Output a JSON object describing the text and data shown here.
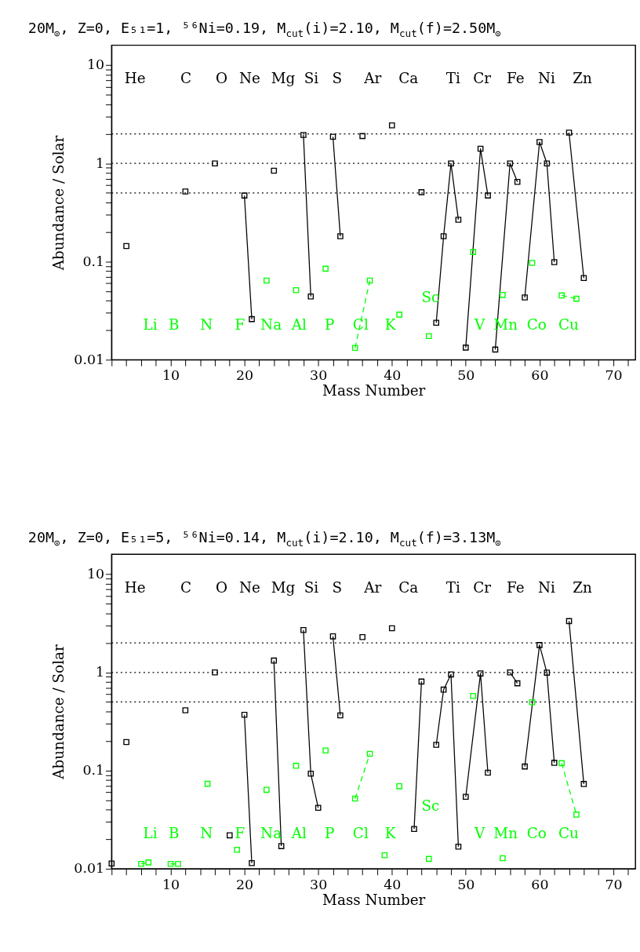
{
  "chart_data": [
    {
      "type": "line",
      "title": "20M$_{⊙}$, Z=0, E₅₁=1, ⁵⁶Ni=0.19, M$_{cut}$(i)=2.10, M$_{cut}$(f)=2.50M$_{⊙}$",
      "xlabel": "Mass Number",
      "ylabel": "Abundance / Solar",
      "log": "y",
      "grid": false,
      "marker": "square",
      "xlim": [
        2,
        73
      ],
      "xticks": [
        {
          "value": 2,
          "label": null
        },
        {
          "value": 4,
          "label": null
        },
        {
          "value": 6,
          "label": null
        },
        {
          "value": 8,
          "label": null
        },
        10,
        {
          "value": 12,
          "label": null
        },
        {
          "value": 14,
          "label": null
        },
        {
          "value": 16,
          "label": null
        },
        {
          "value": 18,
          "label": null
        },
        20,
        {
          "value": 22,
          "label": null
        },
        {
          "value": 24,
          "label": null
        },
        {
          "value": 26,
          "label": null
        },
        {
          "value": 28,
          "label": null
        },
        30,
        {
          "value": 32,
          "label": null
        },
        {
          "value": 34,
          "label": null
        },
        {
          "value": 36,
          "label": null
        },
        {
          "value": 38,
          "label": null
        },
        40,
        {
          "value": 42,
          "label": null
        },
        {
          "value": 44,
          "label": null
        },
        {
          "value": 46,
          "label": null
        },
        {
          "value": 48,
          "label": null
        },
        50,
        {
          "value": 52,
          "label": null
        },
        {
          "value": 54,
          "label": null
        },
        {
          "value": 56,
          "label": null
        },
        {
          "value": 58,
          "label": null
        },
        60,
        {
          "value": 62,
          "label": null
        },
        {
          "value": 64,
          "label": null
        },
        {
          "value": 66,
          "label": null
        },
        {
          "value": 68,
          "label": null
        },
        70,
        {
          "value": 72,
          "label": null
        }
      ],
      "ylim": [
        0.01,
        16
      ],
      "yticks": [
        0.01,
        {
          "value": 0.02,
          "label": null
        },
        {
          "value": 0.03,
          "label": null
        },
        {
          "value": 0.04,
          "label": null
        },
        {
          "value": 0.05,
          "label": null
        },
        {
          "value": 0.06,
          "label": null
        },
        {
          "value": 0.07,
          "label": null
        },
        {
          "value": 0.08,
          "label": null
        },
        {
          "value": 0.09,
          "label": null
        },
        0.1,
        {
          "value": 0.2,
          "label": null
        },
        {
          "value": 0.3,
          "label": null
        },
        {
          "value": 0.4,
          "label": null
        },
        {
          "value": 0.5,
          "label": null
        },
        {
          "value": 0.6,
          "label": null
        },
        {
          "value": 0.7,
          "label": null
        },
        {
          "value": 0.8,
          "label": null
        },
        {
          "value": 0.9,
          "label": null
        },
        1,
        {
          "value": 2,
          "label": null
        },
        {
          "value": 3,
          "label": null
        },
        {
          "value": 4,
          "label": null
        },
        {
          "value": 5,
          "label": null
        },
        {
          "value": 6,
          "label": null
        },
        {
          "value": 7,
          "label": null
        },
        {
          "value": 8,
          "label": null
        },
        {
          "value": 9,
          "label": null
        },
        10
      ],
      "ref_lines": [
        {
          "axis": "y",
          "value": 0.5,
          "line_style": "dotted",
          "color": "#000000"
        },
        {
          "axis": "y",
          "value": 1,
          "line_style": "dotted",
          "color": "#000000"
        },
        {
          "axis": "y",
          "value": 2,
          "line_style": "dotted",
          "color": "#000000"
        }
      ],
      "annotations": [
        "He",
        "C",
        "O",
        "Ne",
        "Mg",
        "Si",
        "S",
        "Ar",
        "Ca",
        "Ti",
        "Cr",
        "Fe",
        "Ni",
        "Zn",
        "Li",
        "B",
        "N",
        "F",
        "Na",
        "Al",
        "P",
        "Cl",
        "K",
        "Sc",
        "V",
        "Mn",
        "Co",
        "Cu"
      ],
      "series": [
        {
          "color": "#000000",
          "line_style": "solid",
          "x": [
            4
          ],
          "values": [
            0.144
          ]
        },
        {
          "color": "#000000",
          "line_style": "solid",
          "x": [
            12
          ],
          "values": [
            0.518
          ]
        },
        {
          "color": "#000000",
          "line_style": "solid",
          "x": [
            16
          ],
          "values": [
            1.0
          ]
        },
        {
          "color": "#000000",
          "line_style": "solid",
          "x": [
            20,
            21
          ],
          "values": [
            0.471,
            0.0259
          ]
        },
        {
          "color": "#000000",
          "line_style": "solid",
          "x": [
            24
          ],
          "values": [
            0.842
          ]
        },
        {
          "color": "#000000",
          "line_style": "solid",
          "x": [
            28,
            29
          ],
          "values": [
            1.95,
            0.0441
          ]
        },
        {
          "color": "#000000",
          "line_style": "solid",
          "x": [
            32,
            33
          ],
          "values": [
            1.87,
            0.181
          ]
        },
        {
          "color": "#000000",
          "line_style": "solid",
          "x": [
            36
          ],
          "values": [
            1.9
          ]
        },
        {
          "color": "#000000",
          "line_style": "solid",
          "x": [
            40
          ],
          "values": [
            2.44
          ]
        },
        {
          "color": "#000000",
          "line_style": "solid",
          "x": [
            44
          ],
          "values": [
            0.509
          ]
        },
        {
          "color": "#000000",
          "line_style": "solid",
          "x": [
            46,
            47,
            48,
            49
          ],
          "values": [
            0.0238,
            0.181,
            1.0,
            0.267
          ]
        },
        {
          "color": "#000000",
          "line_style": "solid",
          "x": [
            50,
            52,
            53
          ],
          "values": [
            0.0133,
            1.41,
            0.471
          ]
        },
        {
          "color": "#000000",
          "line_style": "solid",
          "x": [
            54,
            56,
            57
          ],
          "values": [
            0.0127,
            1.0,
            0.649
          ]
        },
        {
          "color": "#000000",
          "line_style": "solid",
          "x": [
            58,
            60,
            61,
            62
          ],
          "values": [
            0.0431,
            1.65,
            1.0,
            0.0987
          ]
        },
        {
          "color": "#000000",
          "line_style": "solid",
          "x": [
            64,
            66
          ],
          "values": [
            2.06,
            0.068
          ]
        },
        {
          "color": "#00ff00",
          "line_style": "dashed",
          "x": [
            23
          ],
          "values": [
            0.064
          ]
        },
        {
          "color": "#00ff00",
          "line_style": "dashed",
          "x": [
            27
          ],
          "values": [
            0.0511
          ]
        },
        {
          "color": "#00ff00",
          "line_style": "dashed",
          "x": [
            31
          ],
          "values": [
            0.0846
          ]
        },
        {
          "color": "#00ff00",
          "line_style": "dashed",
          "x": [
            35,
            37
          ],
          "values": [
            0.0132,
            0.064
          ]
        },
        {
          "color": "#00ff00",
          "line_style": "dashed",
          "x": [
            41
          ],
          "values": [
            0.0288
          ]
        },
        {
          "color": "#00ff00",
          "line_style": "dashed",
          "x": [
            45
          ],
          "values": [
            0.0174
          ]
        },
        {
          "color": "#00ff00",
          "line_style": "dashed",
          "x": [
            51
          ],
          "values": [
            0.125
          ]
        },
        {
          "color": "#00ff00",
          "line_style": "dashed",
          "x": [
            55
          ],
          "values": [
            0.0457
          ]
        },
        {
          "color": "#00ff00",
          "line_style": "dashed",
          "x": [
            59
          ],
          "values": [
            0.097
          ]
        },
        {
          "color": "#00ff00",
          "line_style": "dashed",
          "x": [
            63,
            65
          ],
          "values": [
            0.0452,
            0.0418
          ]
        }
      ]
    },
    {
      "type": "line",
      "title": "20M$_{⊙}$, Z=0, E₅₁=5, ⁵⁶Ni=0.14, M$_{cut}$(i)=2.10, M$_{cut}$(f)=3.13M$_{⊙}$",
      "xlabel": "Mass Number",
      "ylabel": "Abundance / Solar",
      "log": "y",
      "grid": false,
      "marker": "square",
      "xlim": [
        2,
        73
      ],
      "xticks": [
        {
          "value": 2,
          "label": null
        },
        {
          "value": 4,
          "label": null
        },
        {
          "value": 6,
          "label": null
        },
        {
          "value": 8,
          "label": null
        },
        10,
        {
          "value": 12,
          "label": null
        },
        {
          "value": 14,
          "label": null
        },
        {
          "value": 16,
          "label": null
        },
        {
          "value": 18,
          "label": null
        },
        20,
        {
          "value": 22,
          "label": null
        },
        {
          "value": 24,
          "label": null
        },
        {
          "value": 26,
          "label": null
        },
        {
          "value": 28,
          "label": null
        },
        30,
        {
          "value": 32,
          "label": null
        },
        {
          "value": 34,
          "label": null
        },
        {
          "value": 36,
          "label": null
        },
        {
          "value": 38,
          "label": null
        },
        40,
        {
          "value": 42,
          "label": null
        },
        {
          "value": 44,
          "label": null
        },
        {
          "value": 46,
          "label": null
        },
        {
          "value": 48,
          "label": null
        },
        50,
        {
          "value": 52,
          "label": null
        },
        {
          "value": 54,
          "label": null
        },
        {
          "value": 56,
          "label": null
        },
        {
          "value": 58,
          "label": null
        },
        60,
        {
          "value": 62,
          "label": null
        },
        {
          "value": 64,
          "label": null
        },
        {
          "value": 66,
          "label": null
        },
        {
          "value": 68,
          "label": null
        },
        70,
        {
          "value": 72,
          "label": null
        }
      ],
      "ylim": [
        0.01,
        16
      ],
      "yticks": [
        0.01,
        {
          "value": 0.02,
          "label": null
        },
        {
          "value": 0.03,
          "label": null
        },
        {
          "value": 0.04,
          "label": null
        },
        {
          "value": 0.05,
          "label": null
        },
        {
          "value": 0.06,
          "label": null
        },
        {
          "value": 0.07,
          "label": null
        },
        {
          "value": 0.08,
          "label": null
        },
        {
          "value": 0.09,
          "label": null
        },
        0.1,
        {
          "value": 0.2,
          "label": null
        },
        {
          "value": 0.3,
          "label": null
        },
        {
          "value": 0.4,
          "label": null
        },
        {
          "value": 0.5,
          "label": null
        },
        {
          "value": 0.6,
          "label": null
        },
        {
          "value": 0.7,
          "label": null
        },
        {
          "value": 0.8,
          "label": null
        },
        {
          "value": 0.9,
          "label": null
        },
        1,
        {
          "value": 2,
          "label": null
        },
        {
          "value": 3,
          "label": null
        },
        {
          "value": 4,
          "label": null
        },
        {
          "value": 5,
          "label": null
        },
        {
          "value": 6,
          "label": null
        },
        {
          "value": 7,
          "label": null
        },
        {
          "value": 8,
          "label": null
        },
        {
          "value": 9,
          "label": null
        },
        10
      ],
      "ref_lines": [
        {
          "axis": "y",
          "value": 0.5,
          "line_style": "dotted",
          "color": "#000000"
        },
        {
          "axis": "y",
          "value": 1,
          "line_style": "dotted",
          "color": "#000000"
        },
        {
          "axis": "y",
          "value": 2,
          "line_style": "dotted",
          "color": "#000000"
        }
      ],
      "annotations": [
        "He",
        "C",
        "O",
        "Ne",
        "Mg",
        "Si",
        "S",
        "Ar",
        "Ca",
        "Ti",
        "Cr",
        "Fe",
        "Ni",
        "Zn",
        "Li",
        "B",
        "N",
        "F",
        "Na",
        "Al",
        "P",
        "Cl",
        "K",
        "Sc",
        "V",
        "Mn",
        "Co",
        "Cu"
      ],
      "series": [
        {
          "color": "#000000",
          "line_style": "solid",
          "x": [
            2
          ],
          "values": [
            0.0113
          ]
        },
        {
          "color": "#000000",
          "line_style": "solid",
          "x": [
            4
          ],
          "values": [
            0.195
          ]
        },
        {
          "color": "#000000",
          "line_style": "solid",
          "x": [
            12
          ],
          "values": [
            0.411
          ]
        },
        {
          "color": "#000000",
          "line_style": "solid",
          "x": [
            16
          ],
          "values": [
            1.0
          ]
        },
        {
          "color": "#000000",
          "line_style": "solid",
          "x": [
            18
          ],
          "values": [
            0.0219
          ]
        },
        {
          "color": "#000000",
          "line_style": "solid",
          "x": [
            20,
            21
          ],
          "values": [
            0.37,
            0.0114
          ]
        },
        {
          "color": "#000000",
          "line_style": "solid",
          "x": [
            24,
            25
          ],
          "values": [
            1.32,
            0.017
          ]
        },
        {
          "color": "#000000",
          "line_style": "solid",
          "x": [
            28,
            29,
            30
          ],
          "values": [
            2.7,
            0.093,
            0.0418
          ]
        },
        {
          "color": "#000000",
          "line_style": "solid",
          "x": [
            32,
            33
          ],
          "values": [
            2.33,
            0.365
          ]
        },
        {
          "color": "#000000",
          "line_style": "solid",
          "x": [
            36
          ],
          "values": [
            2.29
          ]
        },
        {
          "color": "#000000",
          "line_style": "solid",
          "x": [
            40
          ],
          "values": [
            2.82
          ]
        },
        {
          "color": "#000000",
          "line_style": "solid",
          "x": [
            43,
            44
          ],
          "values": [
            0.0254,
            0.808
          ]
        },
        {
          "color": "#000000",
          "line_style": "solid",
          "x": [
            46,
            47,
            48,
            49
          ],
          "values": [
            0.183,
            0.668,
            0.954,
            0.0168
          ]
        },
        {
          "color": "#000000",
          "line_style": "solid",
          "x": [
            50,
            52,
            53
          ],
          "values": [
            0.054,
            0.976,
            0.0953
          ]
        },
        {
          "color": "#000000",
          "line_style": "solid",
          "x": [
            56,
            57
          ],
          "values": [
            1.0,
            0.775
          ]
        },
        {
          "color": "#000000",
          "line_style": "solid",
          "x": [
            58,
            60,
            61,
            62
          ],
          "values": [
            0.11,
            1.9,
            0.994,
            0.12
          ]
        },
        {
          "color": "#000000",
          "line_style": "solid",
          "x": [
            64,
            66
          ],
          "values": [
            3.33,
            0.073
          ]
        },
        {
          "color": "#00ff00",
          "line_style": "dashed",
          "x": [
            6,
            7
          ],
          "values": [
            0.0112,
            0.0116
          ]
        },
        {
          "color": "#00ff00",
          "line_style": "dashed",
          "x": [
            10,
            11
          ],
          "values": [
            0.0112,
            0.0112
          ]
        },
        {
          "color": "#00ff00",
          "line_style": "dashed",
          "x": [
            15
          ],
          "values": [
            0.0734
          ]
        },
        {
          "color": "#00ff00",
          "line_style": "dashed",
          "x": [
            19
          ],
          "values": [
            0.0156
          ]
        },
        {
          "color": "#00ff00",
          "line_style": "dashed",
          "x": [
            23
          ],
          "values": [
            0.0637
          ]
        },
        {
          "color": "#00ff00",
          "line_style": "dashed",
          "x": [
            27
          ],
          "values": [
            0.112
          ]
        },
        {
          "color": "#00ff00",
          "line_style": "dashed",
          "x": [
            31
          ],
          "values": [
            0.16
          ]
        },
        {
          "color": "#00ff00",
          "line_style": "dashed",
          "x": [
            35,
            37
          ],
          "values": [
            0.0518,
            0.148
          ]
        },
        {
          "color": "#00ff00",
          "line_style": "dashed",
          "x": [
            39
          ],
          "values": [
            0.0137
          ]
        },
        {
          "color": "#00ff00",
          "line_style": "dashed",
          "x": [
            41
          ],
          "values": [
            0.0692
          ]
        },
        {
          "color": "#00ff00",
          "line_style": "dashed",
          "x": [
            45
          ],
          "values": [
            0.0126
          ]
        },
        {
          "color": "#00ff00",
          "line_style": "dashed",
          "x": [
            51
          ],
          "values": [
            0.576
          ]
        },
        {
          "color": "#00ff00",
          "line_style": "dashed",
          "x": [
            55
          ],
          "values": [
            0.0128
          ]
        },
        {
          "color": "#00ff00",
          "line_style": "dashed",
          "x": [
            59
          ],
          "values": [
            0.497
          ]
        },
        {
          "color": "#00ff00",
          "line_style": "dashed",
          "x": [
            63,
            65
          ],
          "values": [
            0.119,
            0.0356
          ]
        }
      ]
    }
  ]
}
